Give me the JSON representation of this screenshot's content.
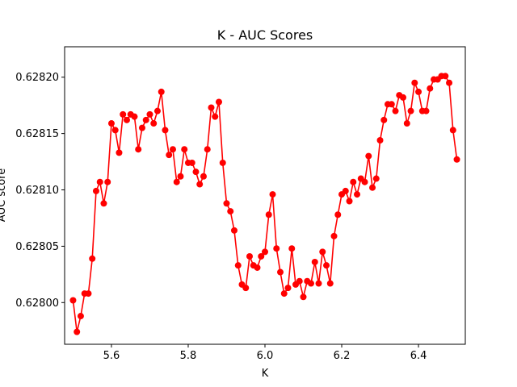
{
  "chart_data": {
    "type": "line",
    "title": "K  -  AUC Scores",
    "xlabel": "K",
    "ylabel": "AUC score",
    "xlim": [
      5.478,
      6.522
    ],
    "ylim": [
      0.627963,
      0.628227
    ],
    "xticks": [
      5.6,
      5.8,
      6.0,
      6.2,
      6.4
    ],
    "xtick_labels": [
      "5.6",
      "5.8",
      "6.0",
      "6.2",
      "6.4"
    ],
    "yticks": [
      0.628,
      0.62805,
      0.6281,
      0.62815,
      0.6282
    ],
    "ytick_labels": [
      "0.62800",
      "0.62805",
      "0.62810",
      "0.62815",
      "0.62820"
    ],
    "grid": false,
    "color": "#ff0000",
    "marker": "circle",
    "series": [
      {
        "x": [
          5.5,
          5.51,
          5.52,
          5.53,
          5.54,
          5.55,
          5.56,
          5.57,
          5.58,
          5.59,
          5.6,
          5.61,
          5.62,
          5.63,
          5.64,
          5.65,
          5.66,
          5.67,
          5.68,
          5.69,
          5.7,
          5.71,
          5.72,
          5.73,
          5.74,
          5.75,
          5.76,
          5.77,
          5.78,
          5.79,
          5.8,
          5.81,
          5.82,
          5.83,
          5.84,
          5.85,
          5.86,
          5.87,
          5.88,
          5.89,
          5.9,
          5.91,
          5.92,
          5.93,
          5.94,
          5.95,
          5.96,
          5.97,
          5.98,
          5.99,
          6.0,
          6.01,
          6.02,
          6.03,
          6.04,
          6.05,
          6.06,
          6.07,
          6.08,
          6.09,
          6.1,
          6.11,
          6.12,
          6.13,
          6.14,
          6.15,
          6.16,
          6.17,
          6.18,
          6.19,
          6.2,
          6.21,
          6.22,
          6.23,
          6.24,
          6.25,
          6.26,
          6.27,
          6.28,
          6.29,
          6.3,
          6.31,
          6.32,
          6.33,
          6.34,
          6.35,
          6.36,
          6.37,
          6.38,
          6.39,
          6.4,
          6.41,
          6.42,
          6.43,
          6.44,
          6.45,
          6.46,
          6.47,
          6.48,
          6.49,
          6.5
        ],
        "y": [
          0.628002,
          0.627974,
          0.627988,
          0.628008,
          0.628008,
          0.628039,
          0.628099,
          0.628107,
          0.628088,
          0.628107,
          0.628159,
          0.628153,
          0.628133,
          0.628167,
          0.628162,
          0.628167,
          0.628165,
          0.628136,
          0.628155,
          0.628162,
          0.628167,
          0.628159,
          0.62817,
          0.628187,
          0.628153,
          0.628131,
          0.628136,
          0.628107,
          0.628112,
          0.628136,
          0.628124,
          0.628124,
          0.628116,
          0.628105,
          0.628112,
          0.628136,
          0.628173,
          0.628165,
          0.628178,
          0.628124,
          0.628088,
          0.628081,
          0.628064,
          0.628033,
          0.628016,
          0.628013,
          0.628041,
          0.628033,
          0.628031,
          0.628041,
          0.628045,
          0.628078,
          0.628096,
          0.628048,
          0.628027,
          0.628008,
          0.628013,
          0.628048,
          0.628016,
          0.628019,
          0.628005,
          0.628019,
          0.628017,
          0.628036,
          0.628017,
          0.628045,
          0.628033,
          0.628017,
          0.628059,
          0.628078,
          0.628096,
          0.628099,
          0.62809,
          0.628107,
          0.628096,
          0.62811,
          0.628107,
          0.62813,
          0.628102,
          0.62811,
          0.628144,
          0.628162,
          0.628176,
          0.628176,
          0.62817,
          0.628184,
          0.628182,
          0.628159,
          0.62817,
          0.628195,
          0.628187,
          0.62817,
          0.62817,
          0.62819,
          0.628198,
          0.628198,
          0.628201,
          0.628201,
          0.628195,
          0.628153,
          0.628127
        ]
      }
    ]
  }
}
